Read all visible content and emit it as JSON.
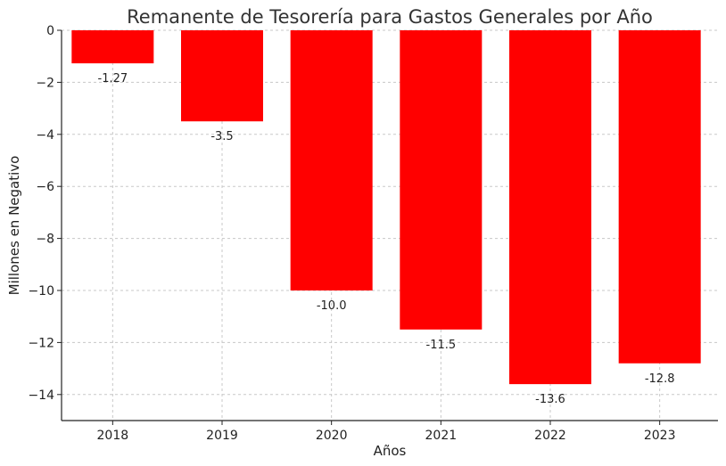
{
  "chart_data": {
    "type": "bar",
    "title": "Remanente de Tesorería para Gastos Generales por Año",
    "xlabel": "Años",
    "ylabel": "Millones en Negativo",
    "categories": [
      "2018",
      "2019",
      "2020",
      "2021",
      "2022",
      "2023"
    ],
    "values": [
      -1.27,
      -3.5,
      -10.0,
      -11.5,
      -13.6,
      -12.8
    ],
    "value_labels": [
      "-1.27",
      "-3.5",
      "-10.0",
      "-11.5",
      "-13.6",
      "-12.8"
    ],
    "ylim": [
      -15,
      0
    ],
    "yticks": [
      0,
      -2,
      -4,
      -6,
      -8,
      -10,
      -12,
      -14
    ],
    "ytick_labels": [
      "0",
      "−2",
      "−4",
      "−6",
      "−8",
      "−10",
      "−12",
      "−14"
    ],
    "grid": true,
    "bar_color": "#ff0000"
  }
}
